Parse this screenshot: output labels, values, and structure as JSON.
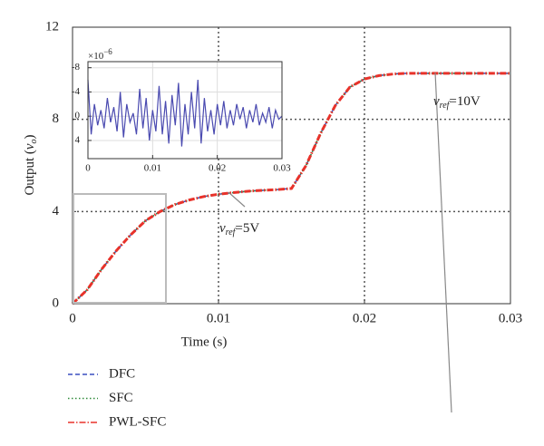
{
  "chart_data": [
    {
      "type": "line",
      "xlabel": "Time (s)",
      "ylabel": [
        "Output (",
        "v",
        "o",
        ")"
      ],
      "x": [
        0,
        0.001,
        0.002,
        0.003,
        0.004,
        0.005,
        0.006,
        0.007,
        0.008,
        0.009,
        0.01,
        0.011,
        0.012,
        0.013,
        0.014,
        0.015,
        0.016,
        0.017,
        0.018,
        0.019,
        0.02,
        0.021,
        0.022,
        0.023,
        0.024,
        0.025,
        0.026,
        0.027,
        0.028,
        0.029,
        0.03
      ],
      "series": [
        {
          "name": "DFC",
          "color": "#3a4fc0",
          "linestyle": "dashed",
          "values": [
            0,
            0.6,
            1.5,
            2.3,
            3.0,
            3.6,
            4.0,
            4.3,
            4.5,
            4.65,
            4.75,
            4.82,
            4.88,
            4.92,
            4.95,
            5.0,
            6.0,
            7.4,
            8.6,
            9.4,
            9.75,
            9.9,
            9.97,
            10,
            10,
            10,
            10,
            10,
            10,
            10,
            10
          ]
        },
        {
          "name": "SFC",
          "color": "#2e8b3a",
          "linestyle": "dotted",
          "values": [
            0,
            0.6,
            1.5,
            2.3,
            3.0,
            3.6,
            4.0,
            4.3,
            4.5,
            4.65,
            4.75,
            4.82,
            4.88,
            4.92,
            4.95,
            5.0,
            6.0,
            7.4,
            8.6,
            9.4,
            9.75,
            9.9,
            9.97,
            10,
            10,
            10,
            10,
            10,
            10,
            10,
            10
          ]
        },
        {
          "name": "PWL-SFC",
          "color": "#e8322a",
          "linestyle": "dashdot",
          "values": [
            0,
            0.6,
            1.5,
            2.3,
            3.0,
            3.6,
            4.0,
            4.3,
            4.5,
            4.65,
            4.75,
            4.82,
            4.88,
            4.92,
            4.95,
            5.0,
            6.0,
            7.4,
            8.6,
            9.4,
            9.75,
            9.9,
            9.97,
            10,
            10,
            10,
            10,
            10,
            10,
            10,
            10
          ]
        }
      ],
      "xlim": [
        0,
        0.03
      ],
      "xticks": [
        0,
        0.01,
        0.02,
        0.03
      ],
      "ylim": [
        0,
        12
      ],
      "yticks": [
        0,
        4,
        8,
        12
      ],
      "grid": true,
      "annotations": [
        [
          "v",
          "ref",
          "=5V"
        ],
        [
          "v",
          "ref",
          "=10V"
        ]
      ]
    },
    {
      "type": "line",
      "exponent": [
        "×10",
        "−6"
      ],
      "x": [
        0,
        0.0005,
        0.001,
        0.0015,
        0.002,
        0.0025,
        0.003,
        0.0035,
        0.004,
        0.0045,
        0.005,
        0.0055,
        0.006,
        0.0065,
        0.007,
        0.0075,
        0.008,
        0.0085,
        0.009,
        0.0095,
        0.01,
        0.0105,
        0.011,
        0.0115,
        0.012,
        0.0125,
        0.013,
        0.0135,
        0.014,
        0.0145,
        0.015,
        0.0155,
        0.016,
        0.0165,
        0.017,
        0.0175,
        0.018,
        0.0185,
        0.019,
        0.0195,
        0.02,
        0.0205,
        0.021,
        0.0215,
        0.022,
        0.0225,
        0.023,
        0.0235,
        0.024,
        0.0245,
        0.025,
        0.0255,
        0.026,
        0.0265,
        0.027,
        0.0275,
        0.028,
        0.0285,
        0.029,
        0.0295,
        0.03
      ],
      "series": [
        {
          "color": "#4a4ab0",
          "values": [
            -6,
            3,
            -2,
            1.5,
            -1,
            2,
            -3,
            1,
            -1.5,
            2.5,
            -4,
            3.5,
            -2,
            1,
            -0.5,
            3,
            -4.5,
            2,
            -3,
            4,
            -1,
            2.5,
            -5,
            3,
            -2.5,
            4.5,
            -3.5,
            1.5,
            -5.5,
            5,
            -2,
            3,
            -4,
            2,
            -6,
            4.5,
            -3,
            2.5,
            -1,
            3,
            -2,
            1.5,
            -2.5,
            2,
            -1,
            1.5,
            -2,
            0.5,
            -1.5,
            2,
            -1,
            1,
            -2,
            1.5,
            -0.5,
            1,
            -1.5,
            2,
            -1,
            0.5,
            0
          ]
        }
      ],
      "xlim": [
        0,
        0.03
      ],
      "xticks": [
        0,
        0.01,
        0.02,
        0.03
      ],
      "ylim": [
        -9,
        7
      ],
      "y_inverted": true,
      "yticks": [
        -8,
        -4,
        0,
        4
      ],
      "grid": true
    }
  ]
}
